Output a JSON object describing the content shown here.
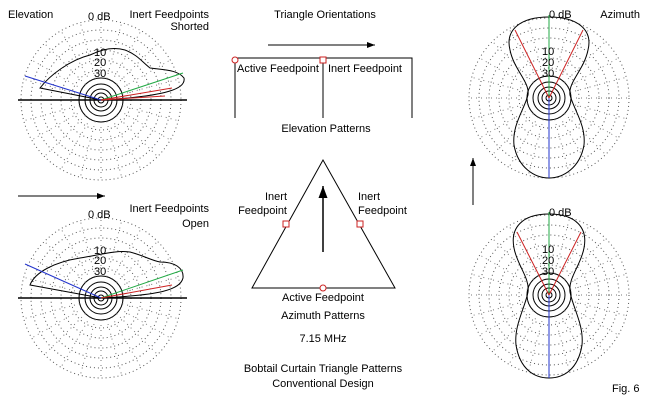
{
  "header": {
    "title": "Bobtail Curtain Triangle Patterns",
    "subtitle": "Conventional Design",
    "figure": "Fig. 6"
  },
  "plots": {
    "elevation_shorted": {
      "heading": "Elevation",
      "ring_top": "0 dB",
      "rings": [
        "10",
        "20",
        "30"
      ],
      "caption": [
        "Inert Feedpoints",
        "Shorted"
      ]
    },
    "elevation_open": {
      "ring_top": "0 dB",
      "rings": [
        "10",
        "20",
        "30"
      ],
      "caption": [
        "Inert Feedpoints",
        "Open"
      ]
    },
    "azimuth_top": {
      "heading": "Azimuth",
      "ring_top": "0 dB",
      "rings": [
        "10",
        "20",
        "30"
      ]
    },
    "azimuth_bottom": {
      "ring_top": "0 dB",
      "rings": [
        "10",
        "20",
        "30"
      ]
    }
  },
  "center": {
    "orientations": "Triangle Orientations",
    "active": "Active Feedpoint",
    "inert": "Inert Feedpoint",
    "elevation_label": "Elevation Patterns",
    "inert_left": [
      "Inert",
      "Feedpoint"
    ],
    "inert_right": [
      "Inert",
      "Feedpoint"
    ],
    "active_bottom": "Active Feedpoint",
    "azimuth_label": "Azimuth Patterns",
    "frequency": "7.15 MHz"
  }
}
